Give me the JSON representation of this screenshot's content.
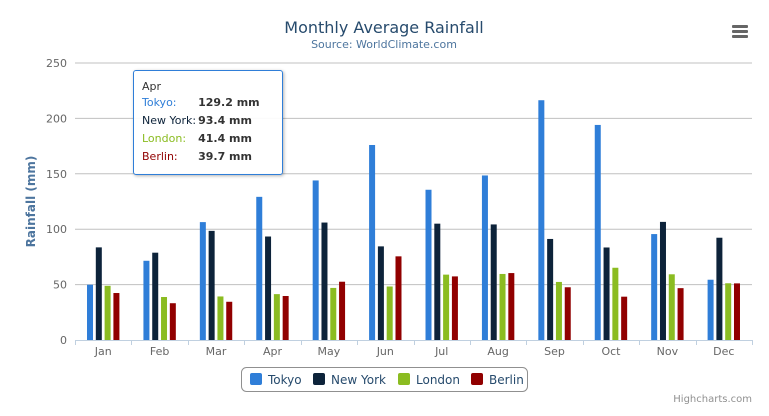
{
  "chart_data": {
    "type": "bar",
    "title": "Monthly Average Rainfall",
    "subtitle": "Source: WorldClimate.com",
    "ylabel": "Rainfall (mm)",
    "xlabel": "",
    "ylim": [
      0,
      250
    ],
    "yticks": [
      "0",
      "50",
      "100",
      "150",
      "200",
      "250"
    ],
    "grid": true,
    "legend_placement": "bottom",
    "categories": [
      "Jan",
      "Feb",
      "Mar",
      "Apr",
      "May",
      "Jun",
      "Jul",
      "Aug",
      "Sep",
      "Oct",
      "Nov",
      "Dec"
    ],
    "series": [
      {
        "name": "Tokyo",
        "color": "#2f7ed8",
        "values": [
          49.9,
          71.5,
          106.4,
          129.2,
          144.0,
          176.0,
          135.6,
          148.5,
          216.4,
          194.1,
          95.6,
          54.4
        ]
      },
      {
        "name": "New York",
        "color": "#0d233a",
        "values": [
          83.6,
          78.8,
          98.5,
          93.4,
          106.0,
          84.5,
          105.0,
          104.3,
          91.2,
          83.5,
          106.6,
          92.3
        ]
      },
      {
        "name": "London",
        "color": "#8bbc21",
        "values": [
          48.9,
          38.8,
          39.3,
          41.4,
          47.0,
          48.3,
          59.0,
          59.6,
          52.4,
          65.2,
          59.3,
          51.2
        ]
      },
      {
        "name": "Berlin",
        "color": "#910000",
        "values": [
          42.4,
          33.2,
          34.5,
          39.7,
          52.6,
          75.5,
          57.4,
          60.4,
          47.6,
          39.1,
          46.8,
          51.1
        ]
      }
    ],
    "tooltip": {
      "header": "Apr",
      "rows": [
        {
          "label": "Tokyo:",
          "value": "129.2 mm",
          "color": "#2f7ed8"
        },
        {
          "label": "New York:",
          "value": "93.4 mm",
          "color": "#0d233a"
        },
        {
          "label": "London:",
          "value": "41.4 mm",
          "color": "#8bbc21"
        },
        {
          "label": "Berlin:",
          "value": "39.7 mm",
          "color": "#910000"
        }
      ]
    }
  },
  "credits": "Highcharts.com",
  "menu_icon": "hamburger-menu-icon"
}
